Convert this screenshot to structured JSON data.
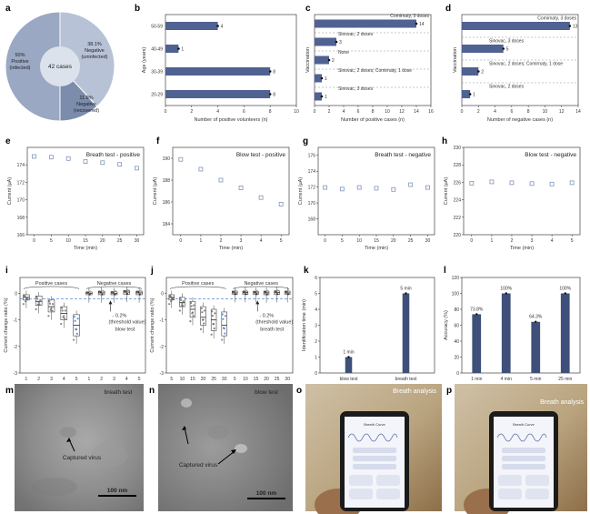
{
  "colors": {
    "bar": "#4f6291",
    "dark_bar": "#3e5079",
    "scatter": "#7e93b8",
    "pie_light": "#b7c2d6",
    "pie_mid": "#9aa8c3",
    "pie_dark": "#7b8cad",
    "accent_blue": "#3b72d0"
  },
  "panel_labels": {
    "a": "a",
    "b": "b",
    "c": "c",
    "d": "d",
    "e": "e",
    "f": "f",
    "g": "g",
    "h": "h",
    "i": "i",
    "j": "j",
    "k": "k",
    "l": "l",
    "m": "m",
    "n": "n",
    "o": "o",
    "p": "p"
  },
  "chart_data": [
    {
      "panel": "a",
      "type": "pie",
      "center_label": "42 cases",
      "slices": [
        {
          "label_line1": "50%",
          "label_line2": "Positive",
          "label_line3": "(infected)",
          "value": 50
        },
        {
          "label_line1": "38.1%",
          "label_line2": "Negative",
          "label_line3": "(uninfected)",
          "value": 38.1
        },
        {
          "label_line1": "11.9%",
          "label_line2": "Negative",
          "label_line3": "(recovered)",
          "value": 11.9
        }
      ]
    },
    {
      "panel": "b",
      "type": "bar",
      "orientation": "horizontal",
      "categories": [
        "50-59",
        "40-49",
        "30-39",
        "20-29"
      ],
      "values": [
        4,
        1,
        8,
        8
      ],
      "xlabel": "Number of positive volunteers (n)",
      "ylabel": "Age (years)",
      "xlim": [
        0,
        10
      ],
      "xticks": [
        "0",
        "2",
        "4",
        "6",
        "8",
        "10"
      ]
    },
    {
      "panel": "c",
      "type": "bar",
      "orientation": "horizontal",
      "categories": [
        "Comirnaty, 3 doses",
        "Sinovac, 2 doses",
        "None",
        "Sinovac, 2 doses; Comirnaty, 1 dose",
        "Sinovac, 3 doses"
      ],
      "values": [
        14,
        3,
        2,
        1,
        1
      ],
      "xlabel": "Number of positive cases (n)",
      "ylabel": "Vaccination",
      "xlim": [
        0,
        16
      ],
      "xticks": [
        "0",
        "2",
        "4",
        "6",
        "8",
        "10",
        "12",
        "14",
        "16"
      ]
    },
    {
      "panel": "d",
      "type": "bar",
      "orientation": "horizontal",
      "categories": [
        "Comirnaty, 3 doses",
        "Sinovac, 3 doses",
        "Sinovac, 2 doses; Comirnaty, 1 dose",
        "Sinovac, 2 doses"
      ],
      "values": [
        13,
        5,
        2,
        1
      ],
      "xlabel": "Number of negative cases (n)",
      "ylabel": "Vaccination",
      "xlim": [
        0,
        14
      ],
      "xticks": [
        "0",
        "2",
        "4",
        "6",
        "8",
        "10",
        "12",
        "14"
      ]
    },
    {
      "panel": "e",
      "type": "scatter",
      "title": "Breath test - positive",
      "x": [
        0,
        5,
        10,
        15,
        20,
        25,
        30
      ],
      "y": [
        174.96,
        174.88,
        174.72,
        174.38,
        174.25,
        174.05,
        173.62
      ],
      "xlabel": "Time (min)",
      "ylabel": "Current (μA)",
      "xlim": [
        -2,
        32
      ],
      "ylim": [
        166,
        176
      ],
      "xticks": [
        "0",
        "5",
        "10",
        "15",
        "20",
        "25",
        "30"
      ],
      "yticks": [
        "166",
        "168",
        "170",
        "172",
        "174"
      ]
    },
    {
      "panel": "f",
      "type": "scatter",
      "title": "Blow test - positive",
      "x": [
        0,
        1,
        2,
        3,
        4,
        5
      ],
      "y": [
        189.9,
        189.0,
        188.0,
        187.3,
        186.4,
        185.8
      ],
      "xlabel": "Time (min)",
      "ylabel": "Current (μA)",
      "xlim": [
        -0.4,
        5.4
      ],
      "ylim": [
        183,
        191
      ],
      "xticks": [
        "0",
        "1",
        "2",
        "3",
        "4",
        "5"
      ],
      "yticks": [
        "184",
        "186",
        "188",
        "190"
      ]
    },
    {
      "panel": "g",
      "type": "scatter",
      "title": "Breath test - negative",
      "x": [
        0,
        5,
        10,
        15,
        20,
        25,
        30
      ],
      "y": [
        171.95,
        171.75,
        171.95,
        171.85,
        171.7,
        172.3,
        171.95
      ],
      "xlabel": "Time (min)",
      "ylabel": "Current (μA)",
      "xlim": [
        -2,
        32
      ],
      "ylim": [
        166,
        177
      ],
      "xticks": [
        "0",
        "5",
        "10",
        "15",
        "20",
        "25",
        "30"
      ],
      "yticks": [
        "168",
        "170",
        "172",
        "174",
        "176"
      ]
    },
    {
      "panel": "h",
      "type": "scatter",
      "title": "Blow test - negative",
      "x": [
        0,
        1,
        2,
        3,
        4,
        5
      ],
      "y": [
        225.9,
        226.05,
        225.95,
        225.85,
        225.8,
        225.95
      ],
      "xlabel": "Time (min)",
      "ylabel": "Current (μA)",
      "xlim": [
        -0.4,
        5.4
      ],
      "ylim": [
        220,
        230
      ],
      "xticks": [
        "0",
        "1",
        "2",
        "3",
        "4",
        "5"
      ],
      "yticks": [
        "220",
        "222",
        "224",
        "226",
        "228",
        "230"
      ]
    },
    {
      "panel": "i",
      "type": "box",
      "annotation": "blow test",
      "group_labels": [
        "Positive cases",
        "Negative cases"
      ],
      "threshold_label": "- 0.2%",
      "threshold_note": "(threshold value)",
      "threshold": -0.2,
      "categories": [
        "1",
        "2",
        "3",
        "4",
        "5",
        "1",
        "2",
        "3",
        "4",
        "5"
      ],
      "medians": [
        -0.15,
        -0.3,
        -0.5,
        -0.75,
        -1.2,
        0.0,
        0.02,
        0.0,
        0.05,
        0.02
      ],
      "q1": [
        -0.25,
        -0.45,
        -0.7,
        -1.0,
        -1.6,
        -0.05,
        -0.05,
        -0.05,
        -0.03,
        -0.05
      ],
      "q3": [
        -0.05,
        -0.1,
        -0.25,
        -0.5,
        -0.8,
        0.05,
        0.08,
        0.06,
        0.1,
        0.08
      ],
      "xlabel": "Time (s)",
      "ylabel": "Current change ratio (%)",
      "ylim": [
        -3,
        0.6
      ],
      "yticks": [
        "0",
        "-1",
        "-2",
        "-3"
      ]
    },
    {
      "panel": "j",
      "type": "box",
      "annotation": "breath test",
      "group_labels": [
        "Positive cases",
        "Negative cases"
      ],
      "threshold_label": "- 0.2%",
      "threshold_note": "(threshold value)",
      "threshold": -0.2,
      "categories": [
        "5",
        "10",
        "15",
        "20",
        "25",
        "30",
        "5",
        "10",
        "15",
        "20",
        "25",
        "30"
      ],
      "medians": [
        -0.15,
        -0.35,
        -0.6,
        -0.9,
        -1.0,
        -1.2,
        0.02,
        0.03,
        0.02,
        0.02,
        0.03,
        0.02
      ],
      "q1": [
        -0.25,
        -0.5,
        -0.9,
        -1.2,
        -1.4,
        -1.6,
        -0.04,
        -0.04,
        -0.04,
        -0.05,
        -0.04,
        -0.04
      ],
      "q3": [
        -0.05,
        -0.15,
        -0.3,
        -0.5,
        -0.6,
        -0.7,
        0.08,
        0.08,
        0.07,
        0.08,
        0.09,
        0.08
      ],
      "xlabel": "Time (min)",
      "ylabel": "Current change ratio (%)",
      "ylim": [
        -3,
        0.6
      ],
      "yticks": [
        "0",
        "-1",
        "-2",
        "-3"
      ]
    },
    {
      "panel": "k",
      "type": "bar",
      "categories": [
        "blow test",
        "breath test"
      ],
      "values": [
        1,
        5
      ],
      "value_labels": [
        "1 min",
        "5 min"
      ],
      "ylabel": "Identification time (min)",
      "ylim": [
        0,
        6
      ],
      "yticks": [
        "0",
        "1",
        "2",
        "3",
        "4",
        "5",
        "6"
      ]
    },
    {
      "panel": "l",
      "type": "bar",
      "categories": [
        "1 min",
        "4 min",
        "5 min",
        "25 min"
      ],
      "group_labels": [
        "blow test",
        "breath test"
      ],
      "values": [
        73.8,
        100,
        64.3,
        100
      ],
      "value_labels": [
        "73.8%",
        "100%",
        "64.3%",
        "100%"
      ],
      "ylabel": "Accuracy (%)",
      "ylim": [
        0,
        120
      ],
      "yticks": [
        "0",
        "20",
        "40",
        "60",
        "80",
        "100",
        "120"
      ]
    }
  ],
  "images": {
    "m": {
      "label": "breath test",
      "arrow_label": "Captured virus",
      "scale": "100 nm"
    },
    "n": {
      "label": "blow test",
      "arrow_label": "Captured virus",
      "scale": "100 nm"
    },
    "o": {
      "banner": "Breath analysis",
      "app_title": "Breath Curve"
    },
    "p": {
      "banner": "Breath analysis",
      "app_title": "Breath Curve"
    }
  }
}
